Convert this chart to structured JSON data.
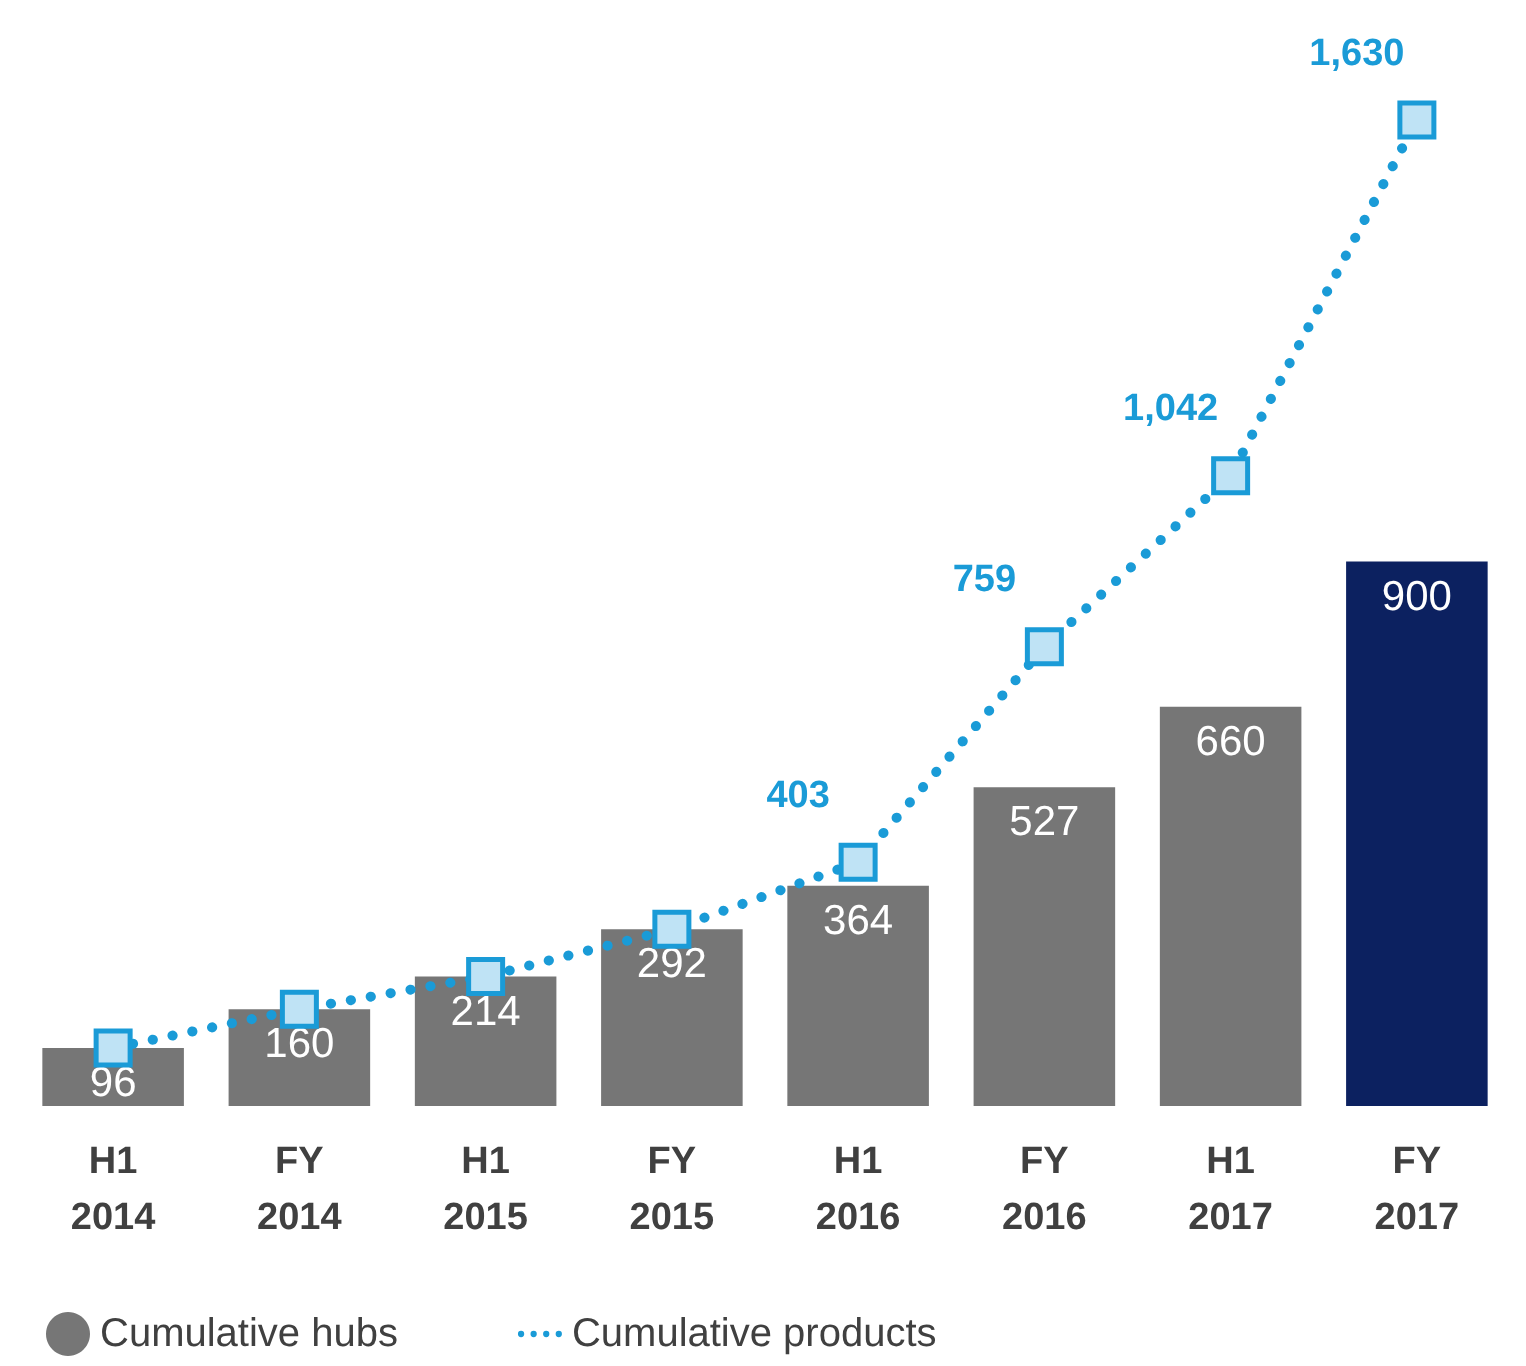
{
  "chart_data": {
    "type": "bar",
    "categories": [
      "H1\n2014",
      "FY\n2014",
      "H1\n2015",
      "FY\n2015",
      "H1\n2016",
      "FY\n2016",
      "H1\n2017",
      "FY\n2017"
    ],
    "series": [
      {
        "name": "Cumulative hubs",
        "color": "#767676",
        "colors": [
          "#767676",
          "#767676",
          "#767676",
          "#767676",
          "#767676",
          "#767676",
          "#767676",
          "#0c2160"
        ],
        "values": [
          96,
          160,
          214,
          292,
          364,
          527,
          660,
          900
        ]
      },
      {
        "name": "Cumulative products",
        "type": "line",
        "color": "#1a9bd7",
        "values": [
          96,
          160,
          214,
          292,
          403,
          759,
          1042,
          1630
        ],
        "value_labels": [
          null,
          null,
          null,
          null,
          "403",
          "759",
          "1,042",
          "1,630"
        ],
        "marker": "square",
        "line_style": "dotted"
      }
    ],
    "data_labels": true,
    "legend": "bottom left"
  }
}
